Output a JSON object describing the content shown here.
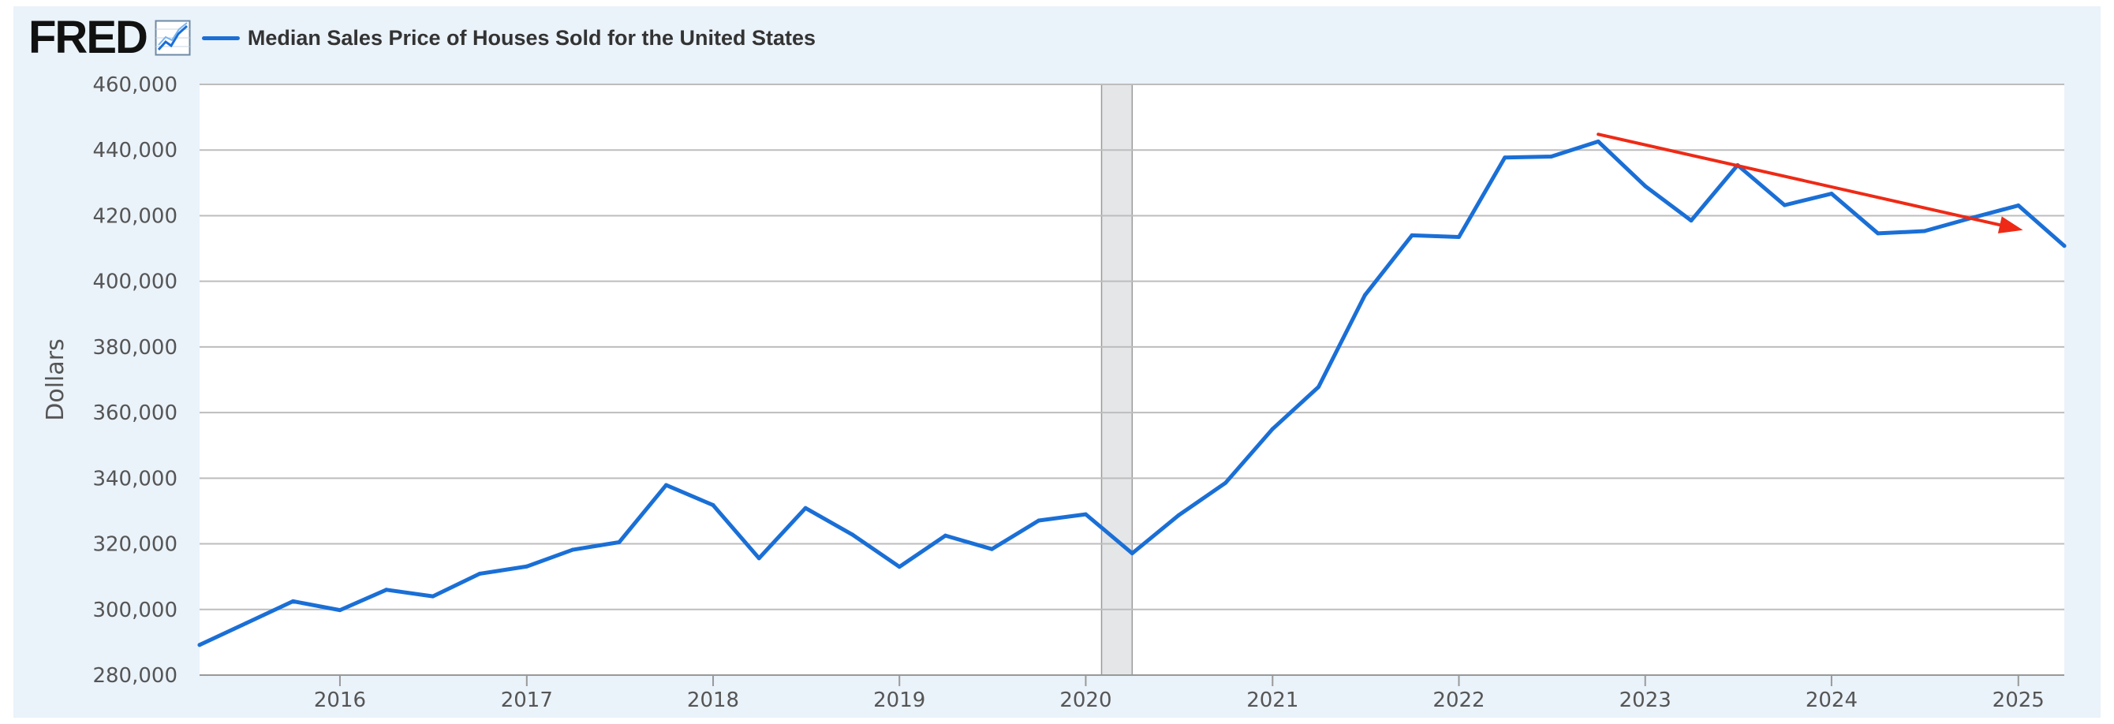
{
  "brand": {
    "logo_text": "FRED",
    "logo_icon": "line-chart-icon"
  },
  "colors": {
    "frame_background": "#eaf2fa",
    "plot_background": "#ffffff",
    "series": "#1a6fd6",
    "annotation_arrow": "#ee2a16",
    "recession_shading": "#e4e6e8",
    "gridline": "#bdbdbd"
  },
  "chart_data": {
    "type": "line",
    "title": "",
    "xlabel": "",
    "ylabel": "Dollars",
    "grid": true,
    "legend": "top-left",
    "ylim": [
      280000,
      460000
    ],
    "xlim": [
      "2015-04-01",
      "2025-04-01"
    ],
    "yticks": [
      280000,
      300000,
      320000,
      340000,
      360000,
      380000,
      400000,
      420000,
      440000,
      460000
    ],
    "ytick_labels": [
      "280,000",
      "300,000",
      "320,000",
      "340,000",
      "360,000",
      "380,000",
      "400,000",
      "420,000",
      "440,000",
      "460,000"
    ],
    "xticks": [
      "2016-01-01",
      "2017-01-01",
      "2018-01-01",
      "2019-01-01",
      "2020-01-01",
      "2021-01-01",
      "2022-01-01",
      "2023-01-01",
      "2024-01-01",
      "2025-01-01"
    ],
    "xtick_labels": [
      "2016",
      "2017",
      "2018",
      "2019",
      "2020",
      "2021",
      "2022",
      "2023",
      "2024",
      "2025"
    ],
    "series": [
      {
        "name": "Median Sales Price of Houses Sold for the United States",
        "x": [
          "2015-04-01",
          "2015-07-01",
          "2015-10-01",
          "2016-01-01",
          "2016-04-01",
          "2016-07-01",
          "2016-10-01",
          "2017-01-01",
          "2017-04-01",
          "2017-07-01",
          "2017-10-01",
          "2018-01-01",
          "2018-04-01",
          "2018-07-01",
          "2018-10-01",
          "2019-01-01",
          "2019-04-01",
          "2019-07-01",
          "2019-10-01",
          "2020-01-01",
          "2020-04-01",
          "2020-07-01",
          "2020-10-01",
          "2021-01-01",
          "2021-04-01",
          "2021-07-01",
          "2021-10-01",
          "2022-01-01",
          "2022-04-01",
          "2022-07-01",
          "2022-10-01",
          "2023-01-01",
          "2023-04-01",
          "2023-07-01",
          "2023-10-01",
          "2024-01-01",
          "2024-04-01",
          "2024-07-01",
          "2024-10-01",
          "2025-01-01",
          "2025-04-01"
        ],
        "values": [
          289200,
          295800,
          302500,
          299800,
          306000,
          304000,
          310900,
          313100,
          318200,
          320500,
          337900,
          331800,
          315600,
          330900,
          322800,
          313000,
          322500,
          318400,
          327100,
          329000,
          317100,
          328700,
          338600,
          355000,
          367800,
          395800,
          414000,
          413500,
          437700,
          438000,
          442600,
          429000,
          418500,
          435400,
          423200,
          426700,
          414600,
          415300,
          419300,
          423100,
          410800
        ]
      }
    ],
    "recessions": [
      {
        "start": "2020-02-01",
        "end": "2020-04-01"
      }
    ],
    "annotations": [
      {
        "type": "arrow",
        "from": {
          "x": "2022-10-01",
          "y": 444800
        },
        "to": {
          "x": "2025-01-10",
          "y": 415600
        }
      }
    ]
  }
}
